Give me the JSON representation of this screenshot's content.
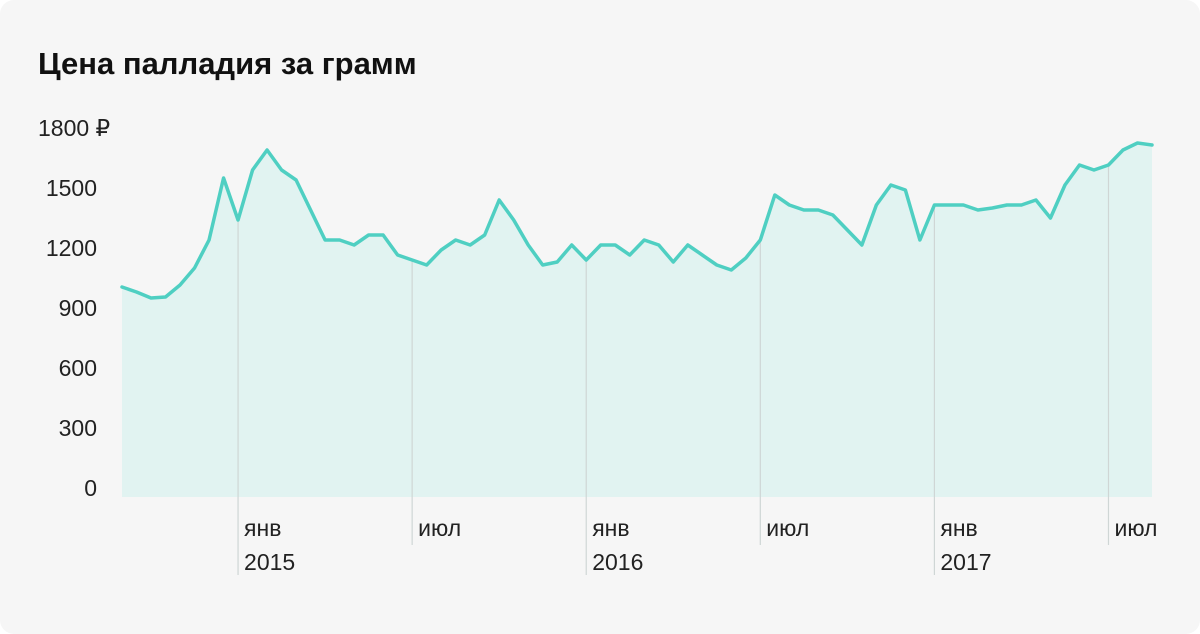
{
  "chart_data": {
    "type": "area",
    "title": "Цена палладия за грамм",
    "color": "#4fcfc2",
    "fill": "#e1f3f1",
    "values": [
      1015,
      990,
      960,
      965,
      1025,
      1110,
      1250,
      1560,
      1350,
      1600,
      1700,
      1600,
      1550,
      1400,
      1250,
      1250,
      1225,
      1275,
      1275,
      1175,
      1150,
      1125,
      1200,
      1250,
      1225,
      1275,
      1450,
      1350,
      1225,
      1125,
      1140,
      1225,
      1150,
      1225,
      1225,
      1175,
      1250,
      1225,
      1140,
      1225,
      1175,
      1125,
      1100,
      1160,
      1250,
      1475,
      1425,
      1400,
      1400,
      1375,
      1300,
      1225,
      1425,
      1525,
      1500,
      1250,
      1425,
      1425,
      1425,
      1400,
      1410,
      1425,
      1425,
      1450,
      1360,
      1525,
      1625,
      1600,
      1625,
      1700,
      1735,
      1725
    ],
    "ylim": [
      -35,
      1800
    ],
    "yticks": [
      0,
      300,
      600,
      900,
      1200,
      1500,
      {
        "value": 1800,
        "label": "1800 ₽"
      }
    ],
    "xticks": [
      {
        "value": 8,
        "label": "янв",
        "year": "2015"
      },
      {
        "value": 20,
        "label": "июл"
      },
      {
        "value": 32,
        "label": "янв",
        "year": "2016"
      },
      {
        "value": 44,
        "label": "июл"
      },
      {
        "value": 56,
        "label": "янв",
        "year": "2017"
      },
      {
        "value": 68,
        "label": "июл"
      }
    ]
  }
}
